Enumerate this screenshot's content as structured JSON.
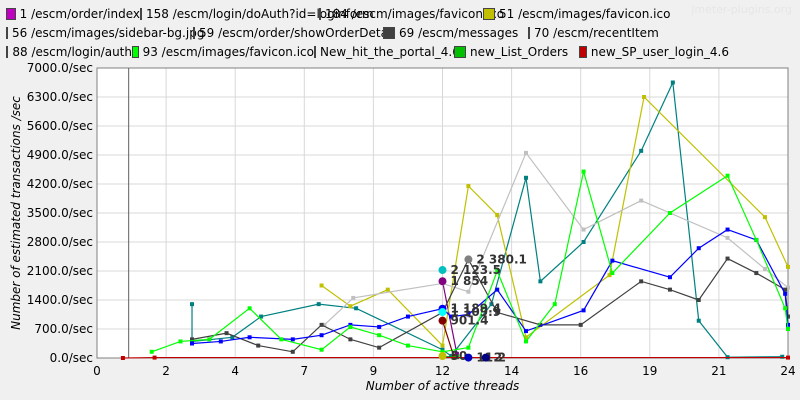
{
  "watermark": "jmeter-plugins.org",
  "chart_data": {
    "type": "line",
    "xlabel": "Number of active threads",
    "ylabel": "Number of estimated transactions /sec",
    "xlim": [
      0,
      24
    ],
    "ylim": [
      0,
      7000
    ],
    "x_ticks": [
      "0",
      "2",
      "4",
      "7",
      "9",
      "12",
      "14",
      "16",
      "19",
      "21",
      "24"
    ],
    "y_ticks": [
      "0.0/sec",
      "700.0/sec",
      "1400.0/sec",
      "2100.0/sec",
      "2800.0/sec",
      "3500.0/sec",
      "4200.0/sec",
      "4900.0/sec",
      "5600.0/sec",
      "6300.0/sec",
      "7000.0/sec"
    ],
    "grid": true,
    "legend_position": "top",
    "series": [
      {
        "name": "1 /escm/order/index",
        "color": "#c000c0",
        "points": [
          [
            12,
            20
          ]
        ]
      },
      {
        "name": "158 /escm/login/doAuth?id=loginform",
        "color": "#800080",
        "points": [
          [
            12,
            1854
          ],
          [
            12.5,
            100
          ]
        ]
      },
      {
        "name": "184 /escm/images/favicon.ico",
        "color": "#008080",
        "points": [
          [
            3.3,
            1300
          ],
          [
            3.3,
            400
          ],
          [
            4.7,
            500
          ],
          [
            5.7,
            1000
          ],
          [
            7.7,
            1300
          ],
          [
            9.0,
            1200
          ],
          [
            12,
            200
          ],
          [
            12.3,
            50
          ],
          [
            13.7,
            1300
          ],
          [
            14.9,
            4350
          ],
          [
            15.4,
            1850
          ],
          [
            16.9,
            2800
          ],
          [
            18.9,
            5000
          ],
          [
            20.0,
            6650
          ],
          [
            20.9,
            900
          ],
          [
            21.9,
            20
          ],
          [
            23.8,
            30
          ]
        ]
      },
      {
        "name": "51 /escm/images/favicon.ico",
        "color": "#c0c000",
        "points": [
          [
            7.8,
            1750
          ],
          [
            8.8,
            1250
          ],
          [
            10.1,
            1650
          ],
          [
            12,
            300
          ],
          [
            12.9,
            4150
          ],
          [
            13.9,
            3450
          ],
          [
            14.9,
            500
          ],
          [
            17.8,
            2000
          ],
          [
            19.0,
            6300
          ],
          [
            23.2,
            3400
          ],
          [
            24,
            2200
          ]
        ]
      },
      {
        "name": "56 /escm/images/sidebar-bg.jpg",
        "color": "#c0c0c0",
        "points": [
          [
            7.9,
            800
          ],
          [
            8.9,
            1450
          ],
          [
            12,
            1800
          ],
          [
            12.9,
            1600
          ],
          [
            14.9,
            4950
          ],
          [
            16.9,
            3100
          ],
          [
            18.9,
            3800
          ],
          [
            21.9,
            2900
          ],
          [
            23.2,
            2150
          ],
          [
            24,
            1700
          ]
        ]
      },
      {
        "name": "59 /escm/order/showOrderDetail",
        "color": "#404000",
        "points": [
          [
            12,
            30
          ],
          [
            12.5,
            20
          ]
        ]
      },
      {
        "name": "69 /escm/messages",
        "color": "#404040",
        "points": [
          [
            3.3,
            450
          ],
          [
            4.5,
            600
          ],
          [
            5.6,
            300
          ],
          [
            6.8,
            150
          ],
          [
            7.8,
            800
          ],
          [
            8.8,
            450
          ],
          [
            9.8,
            250
          ],
          [
            12,
            1100
          ],
          [
            12.9,
            2380
          ],
          [
            13.9,
            1100
          ],
          [
            15.4,
            800
          ],
          [
            16.8,
            800
          ],
          [
            18.9,
            1850
          ],
          [
            19.9,
            1650
          ],
          [
            20.9,
            1400
          ],
          [
            21.9,
            2400
          ],
          [
            22.9,
            2050
          ],
          [
            23.9,
            1650
          ],
          [
            24,
            1000
          ]
        ]
      },
      {
        "name": "70 /escm/recentItem",
        "color": "#0000c0",
        "points": [
          [
            12,
            30
          ],
          [
            12.5,
            25
          ]
        ]
      },
      {
        "name": "88 /escm/login/auth",
        "color": "#0000ff",
        "points": [
          [
            3.3,
            350
          ],
          [
            4.3,
            400
          ],
          [
            5.3,
            500
          ],
          [
            6.8,
            450
          ],
          [
            7.8,
            550
          ],
          [
            8.8,
            800
          ],
          [
            9.8,
            750
          ],
          [
            10.8,
            1000
          ],
          [
            12,
            1190
          ],
          [
            12.3,
            1000
          ],
          [
            12.9,
            1050
          ],
          [
            13.9,
            1650
          ],
          [
            14.9,
            650
          ],
          [
            16.9,
            1150
          ],
          [
            17.9,
            2350
          ],
          [
            19.9,
            1950
          ],
          [
            20.9,
            2650
          ],
          [
            21.9,
            3100
          ],
          [
            22.9,
            2850
          ],
          [
            23.9,
            1550
          ],
          [
            24,
            800
          ]
        ]
      },
      {
        "name": "93 /escm/images/favicon.ico",
        "color": "#00ff00",
        "points": [
          [
            1.9,
            150
          ],
          [
            2.9,
            400
          ],
          [
            3.9,
            450
          ],
          [
            5.3,
            1200
          ],
          [
            6.4,
            450
          ],
          [
            7.8,
            200
          ],
          [
            8.8,
            750
          ],
          [
            9.8,
            550
          ],
          [
            10.8,
            300
          ],
          [
            12,
            150
          ],
          [
            12.9,
            250
          ],
          [
            13.9,
            2100
          ],
          [
            14.9,
            400
          ],
          [
            15.9,
            1300
          ],
          [
            16.9,
            4500
          ],
          [
            17.9,
            2050
          ],
          [
            19.9,
            3500
          ],
          [
            21.9,
            4400
          ],
          [
            22.9,
            2850
          ],
          [
            23.9,
            1200
          ],
          [
            24,
            700
          ]
        ]
      },
      {
        "name": "New_hit_the_portal_4.6",
        "color": "#800000",
        "points": [
          [
            12,
            901.4
          ],
          [
            12.4,
            20
          ]
        ]
      },
      {
        "name": "new_List_Orders",
        "color": "#00c000",
        "points": [
          [
            12,
            20
          ],
          [
            12.5,
            30
          ]
        ]
      },
      {
        "name": "new_SP_user_login_4.6",
        "color": "#c00000",
        "points": [
          [
            0.9,
            0
          ],
          [
            2,
            10
          ],
          [
            12,
            10
          ],
          [
            24,
            10
          ]
        ]
      }
    ],
    "annotations": [
      {
        "text": "2 123.5",
        "x": 12,
        "y": 2123.5,
        "color": "#00c0c0"
      },
      {
        "text": "1 854",
        "x": 12,
        "y": 1854,
        "color": "#800080"
      },
      {
        "text": "1 189.4",
        "x": 12,
        "y": 1189.4,
        "color": "#0000ff"
      },
      {
        "text": "1 109.9",
        "x": 12,
        "y": 1109.9,
        "color": "#00ffff"
      },
      {
        "text": "901.4",
        "x": 12,
        "y": 901.4,
        "color": "#800000"
      },
      {
        "text": "2 380.1",
        "x": 12.9,
        "y": 2380.1,
        "color": "#808080"
      },
      {
        "text": "50",
        "x": 12,
        "y": 50,
        "color": "#c0c000"
      },
      {
        "text": "11.2",
        "x": 12.9,
        "y": 10,
        "color": "#0000c0"
      },
      {
        "text": "2",
        "x": 13.5,
        "y": 10,
        "color": "#000080"
      }
    ]
  }
}
